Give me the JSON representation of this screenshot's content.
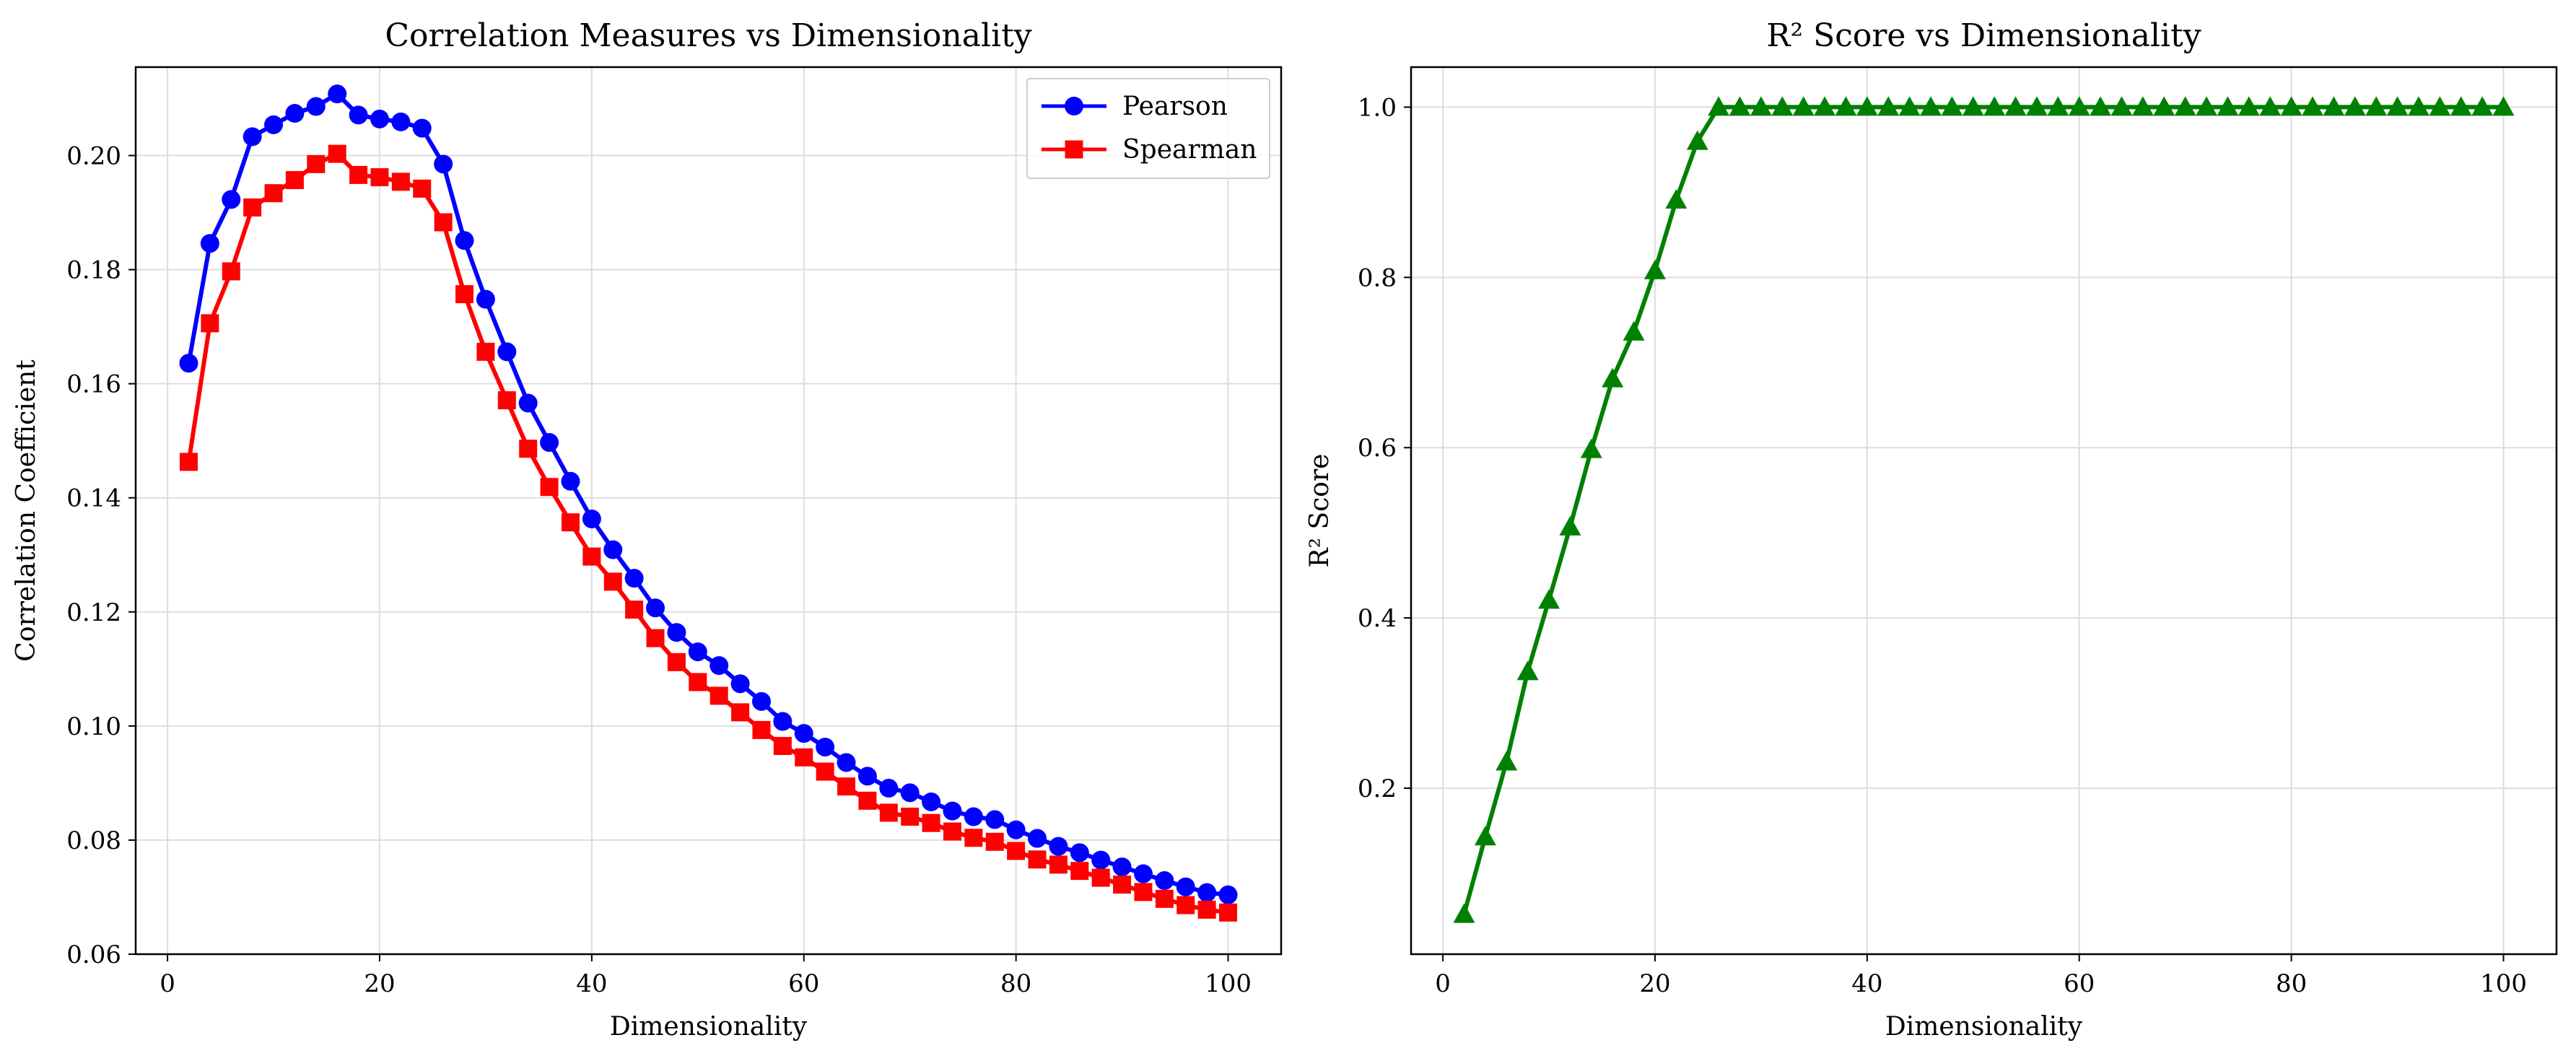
{
  "chart_data": [
    {
      "type": "line",
      "title": "Correlation Measures vs Dimensionality",
      "xlabel": "Dimensionality",
      "ylabel": "Correlation Coefficient",
      "xlim": [
        -3,
        105
      ],
      "ylim": [
        0.06,
        0.2155
      ],
      "xticks": [
        0,
        20,
        40,
        60,
        80,
        100
      ],
      "yticks": [
        0.06,
        0.08,
        0.1,
        0.12,
        0.14,
        0.16,
        0.18,
        0.2
      ],
      "ytick_labels": [
        "0.06",
        "0.08",
        "0.10",
        "0.12",
        "0.14",
        "0.16",
        "0.18",
        "0.20"
      ],
      "grid": true,
      "legend_position": "top-right",
      "x": [
        2,
        4,
        6,
        8,
        10,
        12,
        14,
        16,
        18,
        20,
        22,
        24,
        26,
        28,
        30,
        32,
        34,
        36,
        38,
        40,
        42,
        44,
        46,
        48,
        50,
        52,
        54,
        56,
        58,
        60,
        62,
        64,
        66,
        68,
        70,
        72,
        74,
        76,
        78,
        80,
        82,
        84,
        86,
        88,
        90,
        92,
        94,
        96,
        98,
        100
      ],
      "series": [
        {
          "name": "Pearson",
          "color": "#0000ff",
          "marker": "circle",
          "values": [
            0.1636,
            0.1846,
            0.1923,
            0.2033,
            0.2054,
            0.2074,
            0.2086,
            0.2108,
            0.2071,
            0.2064,
            0.2059,
            0.2048,
            0.1985,
            0.1851,
            0.1748,
            0.1656,
            0.1566,
            0.1497,
            0.1429,
            0.1363,
            0.1309,
            0.1259,
            0.1207,
            0.1164,
            0.113,
            0.1106,
            0.1074,
            0.1043,
            0.1008,
            0.0987,
            0.0963,
            0.0936,
            0.0912,
            0.0891,
            0.0883,
            0.0867,
            0.0851,
            0.0841,
            0.0836,
            0.0818,
            0.0803,
            0.0789,
            0.0778,
            0.0765,
            0.0753,
            0.0741,
            0.0729,
            0.0718,
            0.0708,
            0.0704
          ]
        },
        {
          "name": "Spearman",
          "color": "#ff0000",
          "marker": "square",
          "values": [
            0.1463,
            0.1706,
            0.1797,
            0.1909,
            0.1934,
            0.1957,
            0.1985,
            0.2003,
            0.1966,
            0.1962,
            0.1954,
            0.1942,
            0.1883,
            0.1757,
            0.1656,
            0.1571,
            0.1486,
            0.1419,
            0.1357,
            0.1297,
            0.1253,
            0.1204,
            0.1154,
            0.1112,
            0.1077,
            0.1053,
            0.1024,
            0.0993,
            0.0965,
            0.0945,
            0.092,
            0.0894,
            0.0869,
            0.0848,
            0.0841,
            0.083,
            0.0815,
            0.0804,
            0.0797,
            0.0781,
            0.0766,
            0.0757,
            0.0746,
            0.0734,
            0.0722,
            0.0709,
            0.0697,
            0.0686,
            0.0678,
            0.0673
          ]
        }
      ]
    },
    {
      "type": "line",
      "title": "R² Score vs Dimensionality",
      "xlabel": "Dimensionality",
      "ylabel": "R² Score",
      "xlim": [
        -3,
        105
      ],
      "ylim": [
        0.005,
        1.047
      ],
      "xticks": [
        0,
        20,
        40,
        60,
        80,
        100
      ],
      "yticks": [
        0.2,
        0.4,
        0.6,
        0.8,
        1.0
      ],
      "ytick_labels": [
        "0.2",
        "0.4",
        "0.6",
        "0.8",
        "1.0"
      ],
      "grid": true,
      "x": [
        2,
        4,
        6,
        8,
        10,
        12,
        14,
        16,
        18,
        20,
        22,
        24,
        26,
        28,
        30,
        32,
        34,
        36,
        38,
        40,
        42,
        44,
        46,
        48,
        50,
        52,
        54,
        56,
        58,
        60,
        62,
        64,
        66,
        68,
        70,
        72,
        74,
        76,
        78,
        80,
        82,
        84,
        86,
        88,
        90,
        92,
        94,
        96,
        98,
        100
      ],
      "series": [
        {
          "color": "#008000",
          "marker": "triangle",
          "values": [
            0.052,
            0.143,
            0.231,
            0.337,
            0.421,
            0.507,
            0.598,
            0.681,
            0.736,
            0.808,
            0.891,
            0.96,
            1.0,
            1.0,
            1.0,
            1.0,
            1.0,
            1.0,
            1.0,
            1.0,
            1.0,
            1.0,
            1.0,
            1.0,
            1.0,
            1.0,
            1.0,
            1.0,
            1.0,
            1.0,
            1.0,
            1.0,
            1.0,
            1.0,
            1.0,
            1.0,
            1.0,
            1.0,
            1.0,
            1.0,
            1.0,
            1.0,
            1.0,
            1.0,
            1.0,
            1.0,
            1.0,
            1.0,
            1.0,
            1.0
          ]
        }
      ]
    }
  ]
}
